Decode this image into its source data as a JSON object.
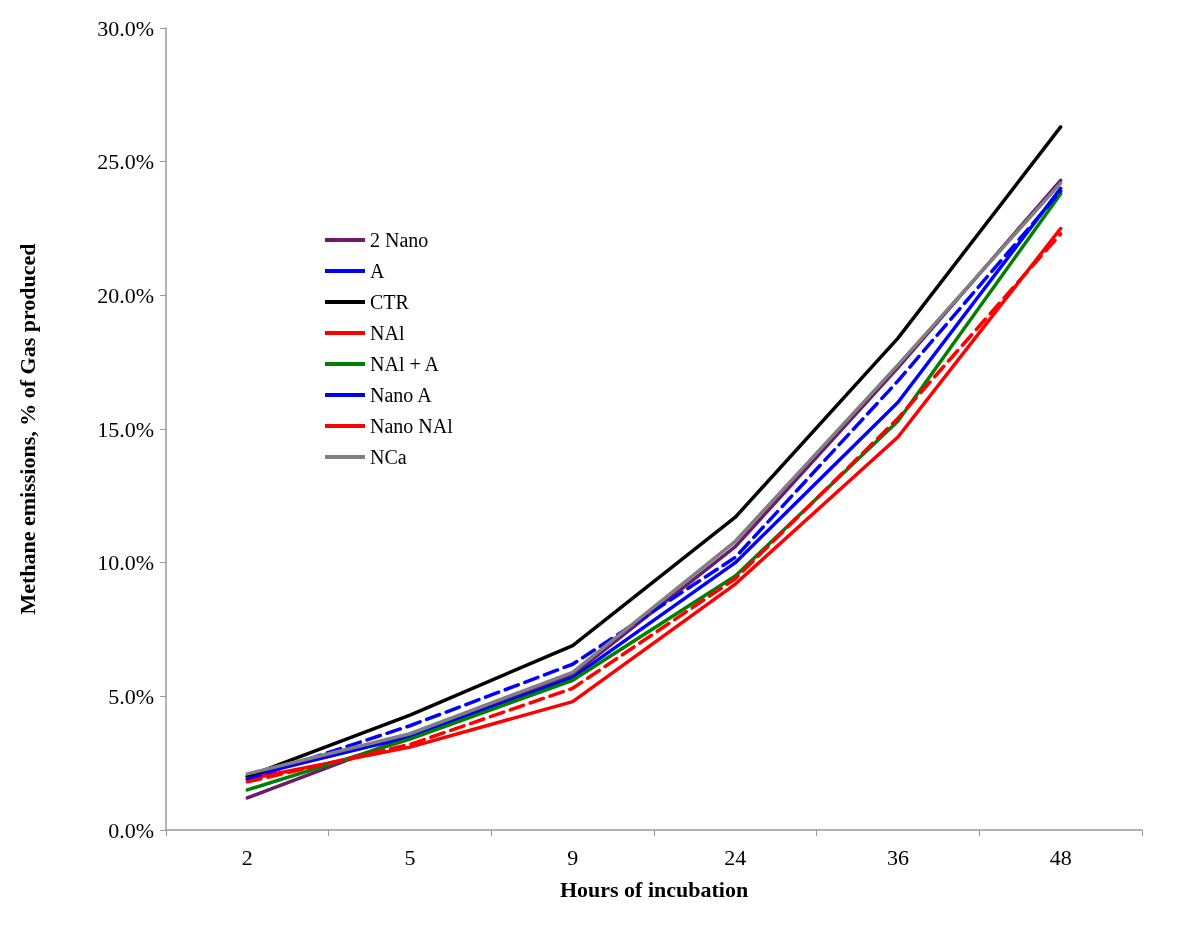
{
  "chart_data": {
    "type": "line",
    "xlabel": "Hours of incubation",
    "ylabel": "Methane emissions, % of Gas produced",
    "categories": [
      "2",
      "5",
      "9",
      "24",
      "36",
      "48"
    ],
    "ylim": [
      0,
      30
    ],
    "yticks": [
      {
        "value": 0,
        "label": "0.0%"
      },
      {
        "value": 5,
        "label": "5.0%"
      },
      {
        "value": 10,
        "label": "10.0%"
      },
      {
        "value": 15,
        "label": "15.0%"
      },
      {
        "value": 20,
        "label": "20.0%"
      },
      {
        "value": 25,
        "label": "25.0%"
      },
      {
        "value": 30,
        "label": "30.0%"
      }
    ],
    "grid": false,
    "legend": "top left",
    "marker": "none",
    "series": [
      {
        "name": "2 Nano",
        "color": "#6a1b6e",
        "values": [
          1.2,
          3.5,
          5.8,
          10.6,
          17.3,
          24.3
        ]
      },
      {
        "name": "A",
        "color": "#0000ff",
        "values": [
          2.0,
          3.5,
          5.7,
          10.0,
          16.0,
          24.0
        ]
      },
      {
        "name": "CTR",
        "color": "#000000",
        "values": [
          2.0,
          4.3,
          6.9,
          11.7,
          18.4,
          26.3
        ]
      },
      {
        "name": "NAl",
        "color": "#ff0000",
        "values": [
          1.9,
          3.1,
          4.8,
          9.2,
          14.7,
          22.5
        ]
      },
      {
        "name": "NAl + A",
        "color": "#008000",
        "values": [
          1.5,
          3.4,
          5.6,
          9.5,
          15.3,
          23.8
        ]
      },
      {
        "name": "Nano A",
        "color": "#0000ff",
        "line_style": "dashed",
        "values": [
          1.9,
          3.9,
          6.2,
          10.2,
          16.8,
          23.9
        ]
      },
      {
        "name": "Nano NAl",
        "color": "#ff0000",
        "line_style": "dashed",
        "values": [
          1.8,
          3.2,
          5.3,
          9.4,
          15.4,
          22.3
        ]
      },
      {
        "name": "NCa",
        "color": "#808080",
        "values": [
          2.1,
          3.6,
          5.9,
          10.8,
          17.4,
          24.2
        ]
      }
    ]
  }
}
